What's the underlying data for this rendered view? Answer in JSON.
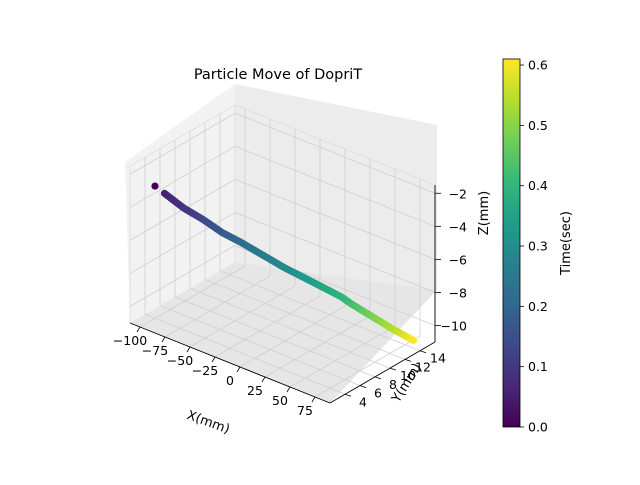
{
  "chart_data": {
    "type": "scatter",
    "projection": "3d",
    "title": "Particle Move of  DopriT",
    "xlabel": "X(mm)",
    "ylabel": "Y(mm)",
    "zlabel": "Z(mm)",
    "xlim": [
      -110,
      90
    ],
    "ylim": [
      2,
      16
    ],
    "zlim": [
      -11,
      -1.5
    ],
    "x_ticks": [
      -100,
      -75,
      -50,
      -25,
      0,
      25,
      50,
      75
    ],
    "x_tick_labels": [
      "−100",
      "−75",
      "−50",
      "−25",
      "0",
      "25",
      "50",
      "75"
    ],
    "y_ticks": [
      4,
      6,
      8,
      10,
      12,
      14
    ],
    "y_tick_labels": [
      "4",
      "6",
      "8",
      "10",
      "12",
      "14"
    ],
    "z_ticks": [
      -10,
      -8,
      -6,
      -4,
      -2
    ],
    "z_tick_labels": [
      "−10",
      "−8",
      "−6",
      "−4",
      "−2"
    ],
    "grid": true,
    "colorbar": {
      "label": "Time(sec)",
      "min": 0.0,
      "max": 0.61,
      "ticks": [
        0.0,
        0.1,
        0.2,
        0.3,
        0.4,
        0.5,
        0.6
      ],
      "tick_labels": [
        "0.0",
        "0.1",
        "0.2",
        "0.3",
        "0.4",
        "0.5",
        "0.6"
      ],
      "colormap": "viridis",
      "colors": [
        "#440154",
        "#482878",
        "#3e4989",
        "#31688e",
        "#26828e",
        "#1f9e89",
        "#35b779",
        "#6ece58",
        "#b5de2b",
        "#fde725"
      ]
    },
    "series": [
      {
        "x": [
          -100,
          -92,
          -84,
          -76,
          -68,
          -60,
          -52,
          -45,
          -38,
          -31,
          -23,
          -15,
          -7,
          1,
          9,
          17,
          25,
          32,
          39,
          45,
          51,
          57,
          63,
          69,
          74,
          79
        ],
        "y": [
          4.0,
          4.2,
          4.4,
          4.6,
          4.8,
          5.0,
          5.3,
          5.6,
          5.9,
          6.2,
          6.6,
          7.0,
          7.4,
          7.8,
          8.3,
          8.8,
          9.3,
          9.8,
          10.3,
          10.8,
          11.4,
          12.0,
          12.6,
          13.2,
          13.9,
          14.6
        ],
        "z": [
          -3.0,
          -3.3,
          -3.6,
          -3.9,
          -4.1,
          -4.3,
          -4.6,
          -4.9,
          -5.1,
          -5.3,
          -5.6,
          -5.9,
          -6.2,
          -6.5,
          -6.8,
          -7.1,
          -7.4,
          -7.7,
          -8.0,
          -8.4,
          -8.8,
          -9.2,
          -9.6,
          -10.0,
          -10.4,
          -10.8
        ],
        "time": [
          0.0,
          0.05,
          0.07,
          0.09,
          0.11,
          0.13,
          0.15,
          0.17,
          0.19,
          0.21,
          0.23,
          0.25,
          0.27,
          0.29,
          0.31,
          0.33,
          0.35,
          0.37,
          0.39,
          0.42,
          0.45,
          0.48,
          0.51,
          0.54,
          0.57,
          0.61
        ]
      }
    ]
  }
}
